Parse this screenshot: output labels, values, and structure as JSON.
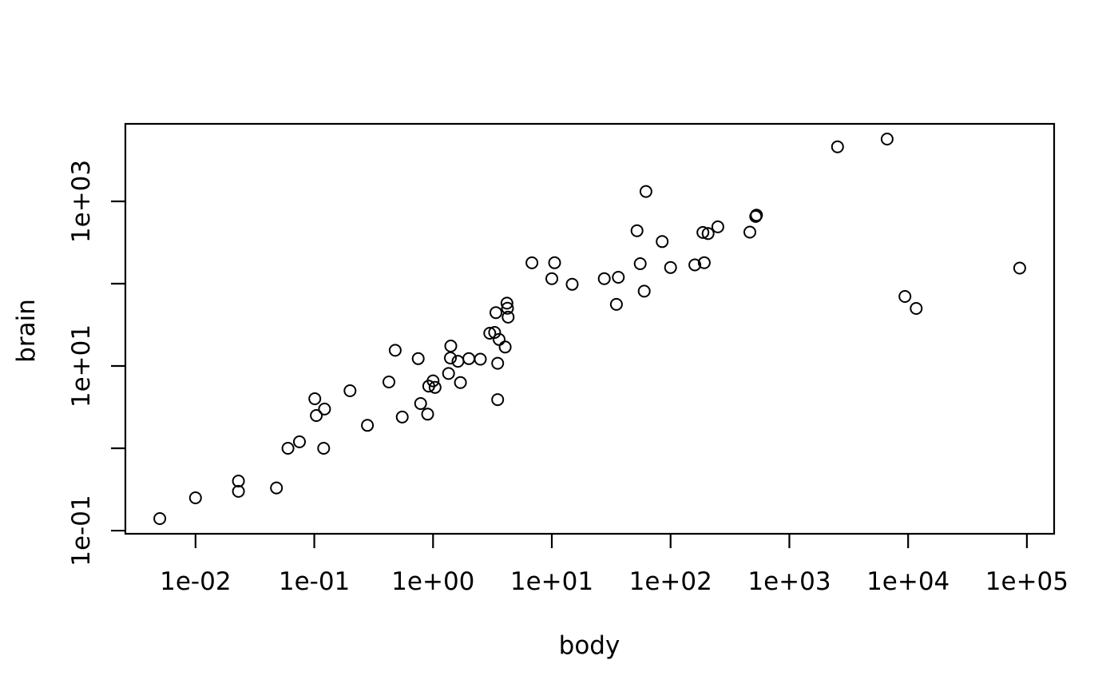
{
  "chart_data": {
    "type": "scatter",
    "title": "",
    "xlabel": "body",
    "ylabel": "brain",
    "x_scale": "log10",
    "y_scale": "log10",
    "background_color": "#ffffff",
    "foreground_color": "#000000",
    "marker": "open-circle",
    "grid": "off",
    "legend": "none",
    "xlim_log10": [
      -2.5907,
      5.2293
    ],
    "ylim_log10": [
      -1.0384,
      3.9414
    ],
    "x_ticks": [
      {
        "value": 0.01,
        "label": "1e-02"
      },
      {
        "value": 0.1,
        "label": "1e-01"
      },
      {
        "value": 1,
        "label": "1e+00"
      },
      {
        "value": 10,
        "label": "1e+01"
      },
      {
        "value": 100,
        "label": "1e+02"
      },
      {
        "value": 1000,
        "label": "1e+03"
      },
      {
        "value": 10000,
        "label": "1e+04"
      },
      {
        "value": 100000,
        "label": "1e+05"
      }
    ],
    "y_ticks": [
      {
        "value": 0.1,
        "label": "1e-01"
      },
      {
        "value": 1,
        "label": ""
      },
      {
        "value": 10,
        "label": "1e+01"
      },
      {
        "value": 100,
        "label": ""
      },
      {
        "value": 1000,
        "label": "1e+03"
      }
    ],
    "points_format": [
      "body",
      "brain"
    ],
    "points": [
      [
        3.385,
        44.5
      ],
      [
        0.48,
        15.5
      ],
      [
        1.35,
        8.1
      ],
      [
        465,
        423
      ],
      [
        36.33,
        119.5
      ],
      [
        27.66,
        115
      ],
      [
        14.83,
        98.2
      ],
      [
        1.04,
        5.5
      ],
      [
        4.19,
        58
      ],
      [
        0.425,
        6.4
      ],
      [
        0.101,
        4
      ],
      [
        0.92,
        5.7
      ],
      [
        1,
        6.6
      ],
      [
        0.005,
        0.14
      ],
      [
        0.06,
        1
      ],
      [
        3.5,
        10.8
      ],
      [
        2,
        12.3
      ],
      [
        1.7,
        6.3
      ],
      [
        2547,
        4603
      ],
      [
        0.023,
        0.3
      ],
      [
        187.1,
        419
      ],
      [
        521,
        655
      ],
      [
        0.785,
        3.5
      ],
      [
        10,
        115
      ],
      [
        3.3,
        25.6
      ],
      [
        0.2,
        5
      ],
      [
        1.41,
        17.5
      ],
      [
        529,
        680
      ],
      [
        207,
        406
      ],
      [
        85,
        325
      ],
      [
        0.75,
        12.3
      ],
      [
        62,
        1320
      ],
      [
        6654,
        5712
      ],
      [
        3.5,
        3.9
      ],
      [
        6.8,
        179
      ],
      [
        35,
        56
      ],
      [
        4.05,
        17
      ],
      [
        0.12,
        1
      ],
      [
        0.023,
        0.4
      ],
      [
        0.01,
        0.25
      ],
      [
        1.4,
        12.5
      ],
      [
        250,
        490
      ],
      [
        2.5,
        12.1
      ],
      [
        55.5,
        175
      ],
      [
        100,
        157
      ],
      [
        52.16,
        440
      ],
      [
        10.55,
        179.5
      ],
      [
        0.55,
        2.4
      ],
      [
        60,
        81
      ],
      [
        3.6,
        21
      ],
      [
        4.288,
        39.2
      ],
      [
        0.28,
        1.9
      ],
      [
        0.075,
        1.2
      ],
      [
        0.122,
        3
      ],
      [
        0.048,
        0.33
      ],
      [
        192,
        180
      ],
      [
        3,
        25
      ],
      [
        160,
        169
      ],
      [
        0.9,
        2.6
      ],
      [
        1.62,
        11.4
      ],
      [
        0.104,
        2.5
      ],
      [
        4.235,
        50.4
      ],
      [
        9400,
        70
      ],
      [
        11700,
        50
      ],
      [
        87000,
        154.5
      ]
    ]
  }
}
